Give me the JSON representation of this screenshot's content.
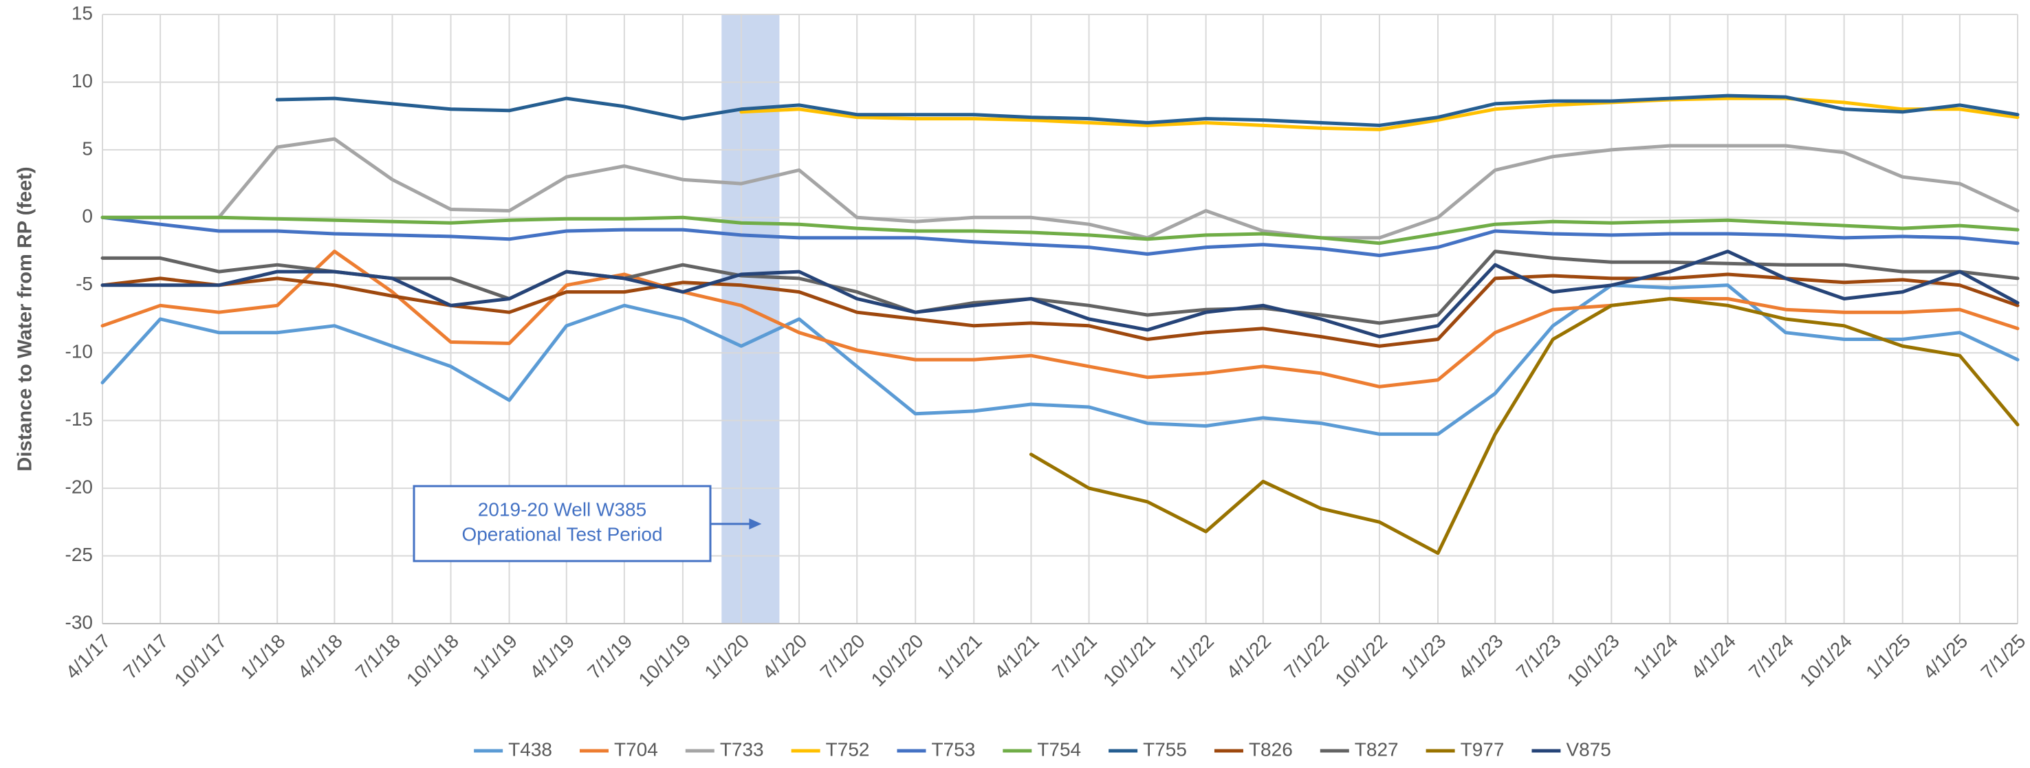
{
  "chart_data": {
    "type": "line",
    "y_label": "Distance to Water from RP (feet)",
    "x": [
      "4/1/17",
      "7/1/17",
      "10/1/17",
      "1/1/18",
      "4/1/18",
      "7/1/18",
      "10/1/18",
      "1/1/19",
      "4/1/19",
      "7/1/19",
      "10/1/19",
      "1/1/20",
      "4/1/20",
      "7/1/20",
      "10/1/20",
      "1/1/21",
      "4/1/21",
      "7/1/21",
      "10/1/21",
      "1/1/22",
      "4/1/22",
      "7/1/22",
      "10/1/22",
      "1/1/23",
      "4/1/23",
      "7/1/23",
      "10/1/23",
      "1/1/24",
      "4/1/24",
      "7/1/24",
      "10/1/24",
      "1/1/25",
      "4/1/25",
      "7/1/25"
    ],
    "xlim": [
      "4/1/17",
      "7/1/25"
    ],
    "xticks": [
      "4/1/17",
      "7/1/17",
      "10/1/17",
      "1/1/18",
      "4/1/18",
      "7/1/18",
      "10/1/18",
      "1/1/19",
      "4/1/19",
      "7/1/19",
      "10/1/19",
      "1/1/20",
      "4/1/20",
      "7/1/20",
      "10/1/20",
      "1/1/21",
      "4/1/21",
      "7/1/21",
      "10/1/21",
      "1/1/22",
      "4/1/22",
      "7/1/22",
      "10/1/22",
      "1/1/23",
      "4/1/23",
      "7/1/23",
      "10/1/23",
      "1/1/24",
      "4/1/24",
      "7/1/24",
      "10/1/24",
      "1/1/25",
      "4/1/25",
      "7/1/25"
    ],
    "ylim": [
      -30,
      15
    ],
    "yticks": [
      -30,
      -25,
      -20,
      -15,
      -10,
      -5,
      0,
      5,
      10,
      15
    ],
    "grid": true,
    "legend": "bottom",
    "highlight": {
      "start": "12/1/19",
      "end": "3/1/20",
      "color": "#c9d7ef",
      "label": [
        "2019-20 Well W385",
        "Operational Test Period"
      ]
    },
    "series": [
      {
        "name": "T438",
        "color": "#5b9bd5",
        "values": [
          -12.2,
          -7.5,
          -8.5,
          -8.5,
          -8,
          -9.5,
          -11,
          -13.5,
          -8,
          -6.5,
          -7.5,
          -9.5,
          -7.5,
          -11,
          -14.5,
          -14.3,
          -13.8,
          -14,
          -15.2,
          -15.4,
          -14.8,
          -15.2,
          -16,
          -16,
          -13,
          -8,
          -5,
          -5.2,
          -5,
          -8.5,
          -9,
          -9,
          -8.5,
          -10.5
        ]
      },
      {
        "name": "T704",
        "color": "#ed7d31",
        "values": [
          -8,
          -6.5,
          -7,
          -6.5,
          -2.5,
          -5.5,
          -9.2,
          -9.3,
          -5,
          -4.2,
          -5.5,
          -6.5,
          -8.5,
          -9.8,
          -10.5,
          -10.5,
          -10.2,
          -11,
          -11.8,
          -11.5,
          -11,
          -11.5,
          -12.5,
          -12,
          -8.5,
          -6.8,
          -6.5,
          -6,
          -6,
          -6.8,
          -7,
          -7,
          -6.8,
          -8.2
        ]
      },
      {
        "name": "T733",
        "color": "#a5a5a5",
        "values": [
          0,
          0,
          0,
          5.2,
          5.8,
          2.8,
          0.6,
          0.5,
          3,
          3.8,
          2.8,
          2.5,
          3.5,
          0,
          -0.3,
          0,
          0,
          -0.5,
          -1.5,
          0.5,
          -1,
          -1.5,
          -1.5,
          0,
          3.5,
          4.5,
          5,
          5.3,
          5.3,
          5.3,
          4.8,
          3,
          2.5,
          0.5
        ]
      },
      {
        "name": "T752",
        "color": "#ffc000",
        "values": [
          null,
          null,
          null,
          null,
          null,
          null,
          null,
          null,
          null,
          null,
          null,
          7.8,
          8,
          7.4,
          7.3,
          7.3,
          7.2,
          7,
          6.8,
          7,
          6.8,
          6.6,
          6.5,
          7.2,
          8,
          8.3,
          8.5,
          8.7,
          8.8,
          8.8,
          8.5,
          8,
          8,
          7.4
        ]
      },
      {
        "name": "T753",
        "color": "#4472c4",
        "values": [
          0,
          -0.5,
          -1,
          -1,
          -1.2,
          -1.3,
          -1.4,
          -1.6,
          -1,
          -0.9,
          -0.9,
          -1.3,
          -1.5,
          -1.5,
          -1.5,
          -1.8,
          -2,
          -2.2,
          -2.7,
          -2.2,
          -2,
          -2.3,
          -2.8,
          -2.2,
          -1,
          -1.2,
          -1.3,
          -1.2,
          -1.2,
          -1.3,
          -1.5,
          -1.4,
          -1.5,
          -1.9
        ]
      },
      {
        "name": "T754",
        "color": "#70ad47",
        "values": [
          0,
          0,
          0,
          -0.1,
          -0.2,
          -0.3,
          -0.4,
          -0.2,
          -0.1,
          -0.1,
          0,
          -0.4,
          -0.5,
          -0.8,
          -1,
          -1,
          -1.1,
          -1.3,
          -1.6,
          -1.3,
          -1.2,
          -1.5,
          -1.9,
          -1.2,
          -0.5,
          -0.3,
          -0.4,
          -0.3,
          -0.2,
          -0.4,
          -0.6,
          -0.8,
          -0.6,
          -0.9
        ]
      },
      {
        "name": "T755",
        "color": "#255e91",
        "values": [
          null,
          null,
          null,
          8.7,
          8.8,
          8.4,
          8,
          7.9,
          8.8,
          8.2,
          7.3,
          8,
          8.3,
          7.6,
          7.6,
          7.6,
          7.4,
          7.3,
          7,
          7.3,
          7.2,
          7,
          6.8,
          7.4,
          8.4,
          8.6,
          8.6,
          8.8,
          9,
          8.9,
          8,
          7.8,
          8.3,
          7.6
        ]
      },
      {
        "name": "T826",
        "color": "#9e480e",
        "values": [
          -5,
          -4.5,
          -5,
          -4.5,
          -5,
          -5.8,
          -6.5,
          -7,
          -5.5,
          -5.5,
          -4.8,
          -5,
          -5.5,
          -7,
          -7.5,
          -8,
          -7.8,
          -8,
          -9,
          -8.5,
          -8.2,
          -8.8,
          -9.5,
          -9,
          -4.5,
          -4.3,
          -4.5,
          -4.5,
          -4.2,
          -4.5,
          -4.8,
          -4.6,
          -5,
          -6.5
        ]
      },
      {
        "name": "T827",
        "color": "#636363",
        "values": [
          -3,
          -3,
          -4,
          -3.5,
          -4,
          -4.5,
          -4.5,
          -6,
          -4,
          -4.5,
          -3.5,
          -4.3,
          -4.5,
          -5.5,
          -7,
          -6.3,
          -6,
          -6.5,
          -7.2,
          -6.8,
          -6.7,
          -7.2,
          -7.8,
          -7.2,
          -2.5,
          -3,
          -3.3,
          -3.3,
          -3.4,
          -3.5,
          -3.5,
          -4,
          -4,
          -4.5
        ]
      },
      {
        "name": "T977",
        "color": "#997300",
        "values": [
          null,
          null,
          null,
          null,
          null,
          null,
          null,
          null,
          null,
          null,
          null,
          null,
          null,
          null,
          null,
          null,
          -17.5,
          -20,
          -21,
          -23.2,
          -19.5,
          -21.5,
          -22.5,
          -24.8,
          -16,
          -9,
          -6.5,
          -6,
          -6.5,
          -7.5,
          -8,
          -9.5,
          -10.2,
          -15.3
        ]
      },
      {
        "name": "V875",
        "color": "#264478",
        "values": [
          -5,
          -5,
          -5,
          -4,
          -4,
          -4.5,
          -6.5,
          -6,
          -4,
          -4.5,
          -5.5,
          -4.2,
          -4,
          -6,
          -7,
          -6.5,
          -6,
          -7.5,
          -8.3,
          -7,
          -6.5,
          -7.5,
          -8.8,
          -8,
          -3.5,
          -5.5,
          -5,
          -4,
          -2.5,
          -4.5,
          -6,
          -5.5,
          -4,
          -6.3
        ]
      }
    ]
  }
}
